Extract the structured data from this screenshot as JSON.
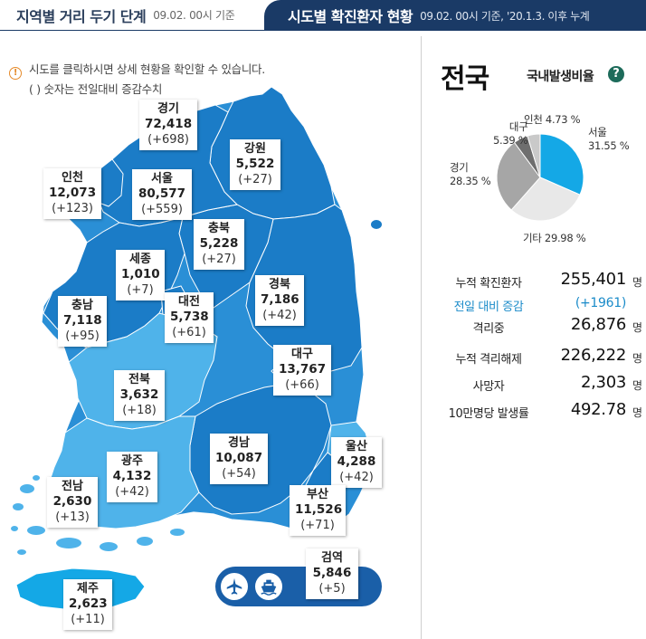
{
  "header": {
    "tab_distance": "지역별 거리 두기 단계",
    "tab_distance_date": "09.02. 00시 기준",
    "tab_confirmed": "시도별 확진환자 현황",
    "tab_confirmed_date": "09.02. 00시 기준, '20.1.3. 이후 누계"
  },
  "notes": {
    "info_icon": "!",
    "line1": "시도를 클릭하시면 상세 현황을 확인할 수 있습니다.",
    "line2": "( ) 숫자는 전일대비 증감수치"
  },
  "regions": {
    "gyeonggi": {
      "name": "경기",
      "total": "72,418",
      "delta": "(+698)"
    },
    "gangwon": {
      "name": "강원",
      "total": "5,522",
      "delta": "(+27)"
    },
    "incheon": {
      "name": "인천",
      "total": "12,073",
      "delta": "(+123)"
    },
    "seoul": {
      "name": "서울",
      "total": "80,577",
      "delta": "(+559)"
    },
    "chungbuk": {
      "name": "충북",
      "total": "5,228",
      "delta": "(+27)"
    },
    "sejong": {
      "name": "세종",
      "total": "1,010",
      "delta": "(+7)"
    },
    "chungnam": {
      "name": "충남",
      "total": "7,118",
      "delta": "(+95)"
    },
    "daejeon": {
      "name": "대전",
      "total": "5,738",
      "delta": "(+61)"
    },
    "gyeongbuk": {
      "name": "경북",
      "total": "7,186",
      "delta": "(+42)"
    },
    "daegu": {
      "name": "대구",
      "total": "13,767",
      "delta": "(+66)"
    },
    "jeonbuk": {
      "name": "전북",
      "total": "3,632",
      "delta": "(+18)"
    },
    "gyeongnam": {
      "name": "경남",
      "total": "10,087",
      "delta": "(+54)"
    },
    "ulsan": {
      "name": "울산",
      "total": "4,288",
      "delta": "(+42)"
    },
    "gwangju": {
      "name": "광주",
      "total": "4,132",
      "delta": "(+42)"
    },
    "jeonnam": {
      "name": "전남",
      "total": "2,630",
      "delta": "(+13)"
    },
    "busan": {
      "name": "부산",
      "total": "11,526",
      "delta": "(+71)"
    },
    "quarantine": {
      "name": "검역",
      "total": "5,846",
      "delta": "(+5)"
    },
    "jeju": {
      "name": "제주",
      "total": "2,623",
      "delta": "(+11)"
    }
  },
  "transport_icons": [
    "airplane-icon",
    "ship-icon"
  ],
  "panel": {
    "title": "전국",
    "ratio_title": "국내발생비율",
    "help_label": "?",
    "pie": [
      {
        "name": "서울",
        "pct": "31.55 %",
        "value": 31.55,
        "color": "#14a8e6"
      },
      {
        "name": "기타",
        "pct": "29.98 %",
        "value": 29.98,
        "color": "#e8e8e8"
      },
      {
        "name": "경기",
        "pct": "28.35 %",
        "value": 28.35,
        "color": "#a6a6a6"
      },
      {
        "name": "대구",
        "pct": "5.39 %",
        "value": 5.39,
        "color": "#6e6e6e"
      },
      {
        "name": "인천",
        "pct": "4.73 %",
        "value": 4.73,
        "color": "#c9c9c9"
      }
    ],
    "stats": [
      {
        "label": "누적 확진환자",
        "value": "255,401",
        "unit": "명"
      },
      {
        "label": "전일 대비 증감",
        "value": "(+1961)",
        "unit": ""
      },
      {
        "label": "격리중",
        "value": "26,876",
        "unit": "명"
      },
      {
        "label": "누적 격리해제",
        "value": "226,222",
        "unit": "명"
      },
      {
        "label": "사망자",
        "value": "2,303",
        "unit": "명"
      },
      {
        "label": "10만명당 발생률",
        "value": "492.78",
        "unit": "명"
      }
    ]
  },
  "colors": {
    "navy": "#1a3a66",
    "map_dark": "#1b7cc7",
    "map_mid": "#2a93d8",
    "map_light": "#4fb3ea",
    "accent_blue": "#1a8bc9"
  }
}
